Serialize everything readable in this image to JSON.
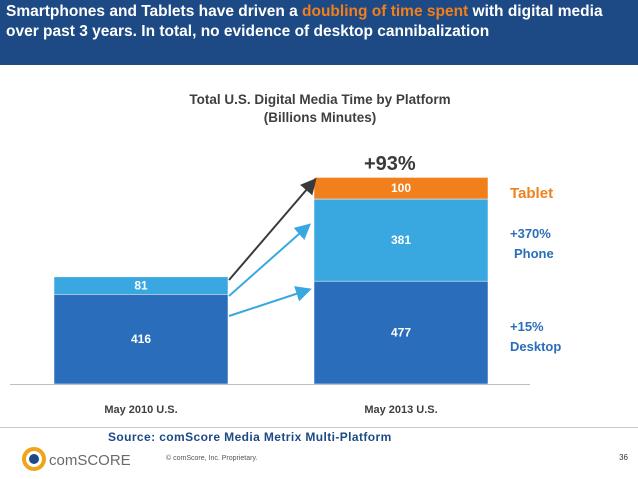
{
  "slide": {
    "title_part1": "Smartphones and Tablets have driven a ",
    "title_highlight": "doubling of time spent",
    "title_part2": " with digital media over past 3 years. In total, no evidence of desktop cannibalization",
    "source": "Source: comScore Media Metrix Multi-Platform",
    "footer_text": "© comScore, Inc.     Proprietary.",
    "page_number": "36",
    "logo_text": "comSCORE"
  },
  "colors": {
    "header_bg": "#1d4a85",
    "highlight": "#f07f1c",
    "desktop": "#2a6ebb",
    "phone": "#39a8e0",
    "tablet": "#f07f1c",
    "label_blue": "#2a6ebb"
  },
  "chart_data": {
    "type": "bar",
    "stacked": true,
    "title": "Total U.S. Digital Media Time by Platform",
    "subtitle": "(Billions Minutes)",
    "categories": [
      "May 2010 U.S.",
      "May 2013 U.S."
    ],
    "series": [
      {
        "name": "Desktop",
        "values": [
          416,
          477
        ],
        "growth": "+15%",
        "color": "#2a6ebb"
      },
      {
        "name": "Phone",
        "values": [
          81,
          381
        ],
        "growth": "+370%",
        "color": "#39a8e0"
      },
      {
        "name": "Tablet",
        "values": [
          0,
          100
        ],
        "growth": "",
        "color": "#f07f1c"
      }
    ],
    "segment_labels": [
      [
        "416",
        "81",
        ""
      ],
      [
        "477",
        "381",
        "100"
      ]
    ],
    "total_growth": "+93%",
    "ylim": [
      0,
      1000
    ]
  }
}
